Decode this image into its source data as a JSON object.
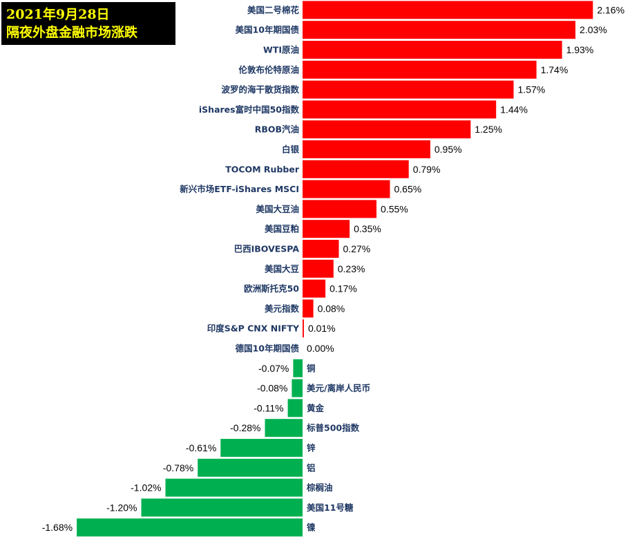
{
  "title": {
    "line1": "2021年9月28日",
    "line2": "隔夜外盘金融市场涨跌"
  },
  "colors": {
    "positive": "#ff0000",
    "negative": "#00b050",
    "label": "#1f3864",
    "title_bg": "#000000",
    "title_fg": "#ffff00"
  },
  "chart_data": {
    "type": "bar",
    "orientation": "horizontal",
    "unit": "%",
    "categories": [
      "美国二号棉花",
      "美国10年期国债",
      "WTI原油",
      "伦敦布伦特原油",
      "波罗的海干散货指数",
      "iShares富时中国50指数",
      "RBOB汽油",
      "白银",
      "TOCOM Rubber",
      "新兴市场ETF-iShares MSCI",
      "美国大豆油",
      "美国豆粕",
      "巴西IBOVESPA",
      "美国大豆",
      "欧洲斯托克50",
      "美元指数",
      "印度S&P CNX NIFTY",
      "德国10年期国债",
      "铜",
      "美元/离岸人民币",
      "黄金",
      "标普500指数",
      "锌",
      "铝",
      "棕榈油",
      "美国11号糖",
      "镍"
    ],
    "values": [
      2.16,
      2.03,
      1.93,
      1.74,
      1.57,
      1.44,
      1.25,
      0.95,
      0.79,
      0.65,
      0.55,
      0.35,
      0.27,
      0.23,
      0.17,
      0.08,
      0.01,
      0.0,
      -0.07,
      -0.08,
      -0.11,
      -0.28,
      -0.61,
      -0.78,
      -1.02,
      -1.2,
      -1.68
    ],
    "value_labels": [
      "2.16%",
      "2.03%",
      "1.93%",
      "1.74%",
      "1.57%",
      "1.44%",
      "1.25%",
      "0.95%",
      "0.79%",
      "0.65%",
      "0.55%",
      "0.35%",
      "0.27%",
      "0.23%",
      "0.17%",
      "0.08%",
      "0.01%",
      "0.00%",
      "-0.07%",
      "-0.08%",
      "-0.11%",
      "-0.28%",
      "-0.61%",
      "-0.78%",
      "-1.02%",
      "-1.20%",
      "-1.68%"
    ],
    "xlim": [
      -1.68,
      2.16
    ],
    "grid": false,
    "legend": "none"
  }
}
